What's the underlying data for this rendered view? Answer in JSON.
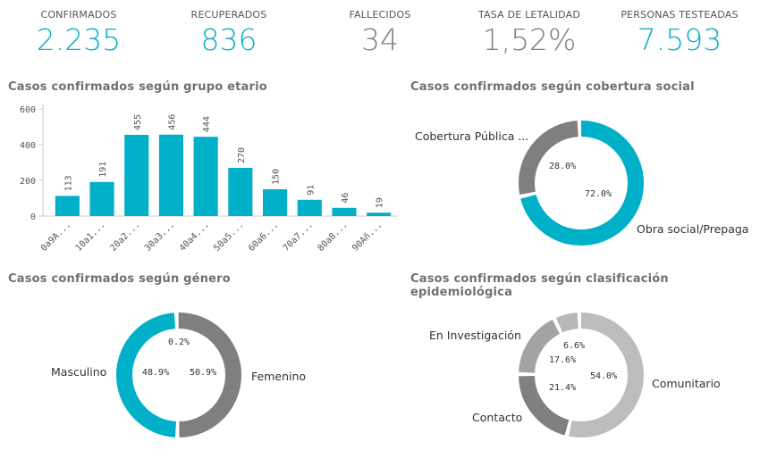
{
  "kpis": [
    {
      "label": "CONFIRMADOS",
      "value": "2.235",
      "color": "#11afc6"
    },
    {
      "label": "RECUPERADOS",
      "value": "836",
      "color": "#11afc6"
    },
    {
      "label": "FALLECIDOS",
      "value": "34",
      "color": "#808080"
    },
    {
      "label": "TASA DE LETALIDAD",
      "value": "1,52%",
      "color": "#808080"
    },
    {
      "label": "PERSONAS TESTEADAS",
      "value": "7.593",
      "color": "#11afc6"
    }
  ],
  "chart_data": [
    {
      "type": "bar",
      "title": "Casos confirmados según grupo etario",
      "categories": [
        "0a9A...",
        "10a1...",
        "20a2...",
        "30a3...",
        "40a4...",
        "50a5...",
        "60a6...",
        "70a7...",
        "80a8...",
        "90Añ..."
      ],
      "values": [
        113,
        191,
        455,
        456,
        444,
        270,
        150,
        91,
        46,
        19
      ],
      "ylim": [
        0,
        600
      ],
      "yticks": [
        "0",
        "200",
        "400",
        "600"
      ],
      "color": "#00afc8",
      "grid": false
    },
    {
      "type": "pie",
      "title": "Casos confirmados según cobertura social",
      "slices": [
        {
          "label": "Obra social/Prepaga",
          "value": 72.0,
          "pct": "72.0%",
          "color": "#00afc8"
        },
        {
          "label": "Cobertura Pública ...",
          "value": 28.0,
          "pct": "28.0%",
          "color": "#7f7f7f"
        }
      ]
    },
    {
      "type": "pie",
      "title": "Casos confirmados según género",
      "slices": [
        {
          "label": "Femenino",
          "value": 50.9,
          "pct": "50.9%",
          "color": "#7f7f7f"
        },
        {
          "label": "Masculino",
          "value": 48.9,
          "pct": "48.9%",
          "color": "#00afc8"
        },
        {
          "label": "",
          "value": 0.2,
          "pct": "0.2%",
          "color": "#bbbbbb"
        }
      ]
    },
    {
      "type": "pie",
      "title": "Casos confirmados según clasificación epidemiológica",
      "slices": [
        {
          "label": "Comunitario",
          "value": 54.0,
          "pct": "54.0%",
          "color": "#bdbdbd"
        },
        {
          "label": "Contacto",
          "value": 21.4,
          "pct": "21.4%",
          "color": "#808080"
        },
        {
          "label": "En Investigación",
          "value": 17.6,
          "pct": "17.6%",
          "color": "#a3a3a3"
        },
        {
          "label": "",
          "value": 6.6,
          "pct": "6.6%",
          "color": "#b8b8b8"
        }
      ]
    }
  ]
}
